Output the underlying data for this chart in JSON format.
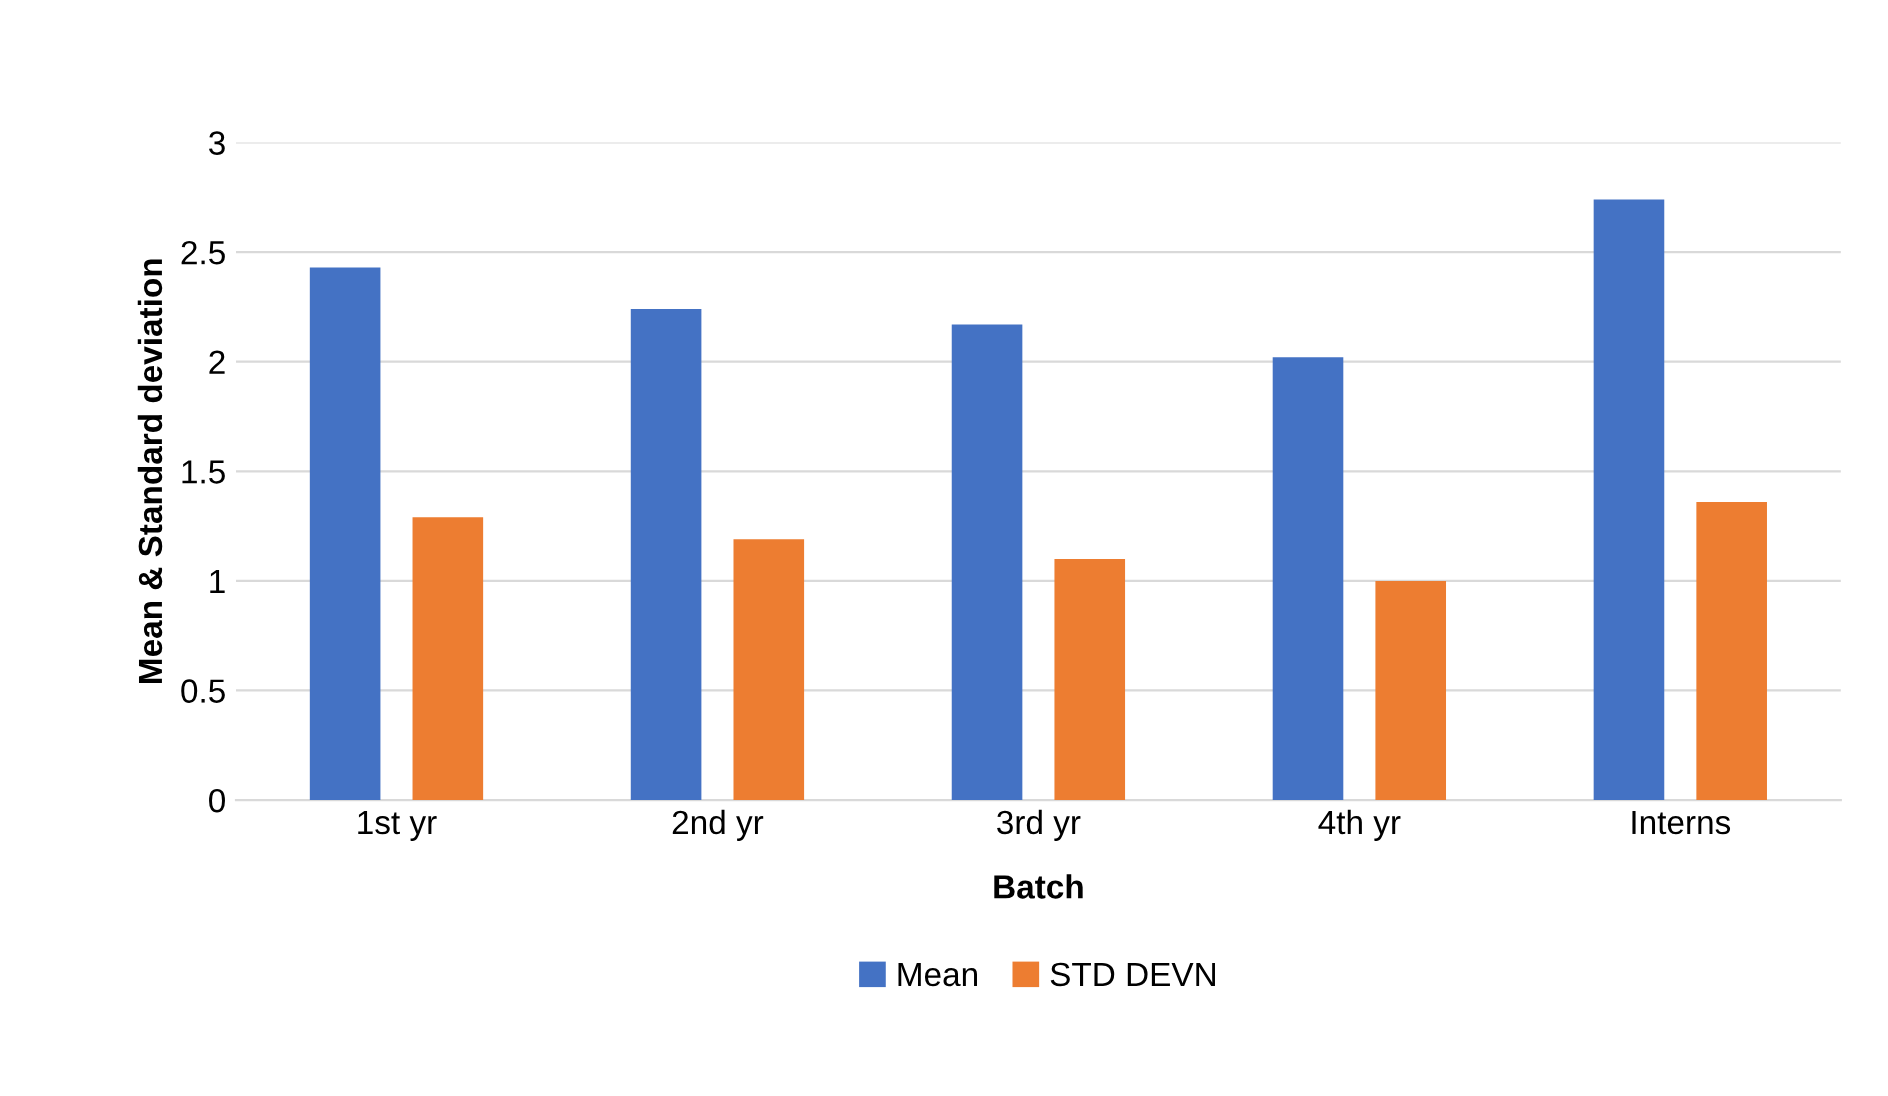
{
  "chart_data": {
    "type": "bar",
    "xlabel": "Batch",
    "ylabel": "Mean & Standard deviation",
    "categories": [
      "1st yr",
      "2nd yr",
      "3rd yr",
      "4th yr",
      "Interns"
    ],
    "series": [
      {
        "name": "Mean",
        "color": "#4472c4",
        "values": [
          2.43,
          2.24,
          2.17,
          2.02,
          2.74
        ]
      },
      {
        "name": "STD DEVN",
        "color": "#ed7d31",
        "values": [
          1.29,
          1.19,
          1.1,
          1.0,
          1.36
        ]
      }
    ],
    "ylim": [
      0,
      3
    ],
    "yticks": [
      0,
      0.5,
      1,
      1.5,
      2,
      2.5,
      3
    ],
    "grid": "y",
    "legend": "bottom"
  }
}
